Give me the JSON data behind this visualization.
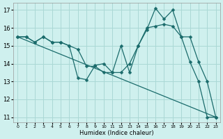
{
  "bg_color": "#cff0ee",
  "grid_color": "#aad8d5",
  "line_color": "#1a6b6b",
  "xlabel": "Humidex (Indice chaleur)",
  "xlim": [
    -0.5,
    23.5
  ],
  "ylim": [
    10.7,
    17.4
  ],
  "yticks": [
    11,
    12,
    13,
    14,
    15,
    16,
    17
  ],
  "xticks": [
    0,
    1,
    2,
    3,
    4,
    5,
    6,
    7,
    8,
    9,
    10,
    11,
    12,
    13,
    14,
    15,
    16,
    17,
    18,
    19,
    20,
    21,
    22,
    23
  ],
  "line1_x": [
    0,
    1,
    2,
    3,
    4,
    5,
    6,
    7,
    8,
    9,
    10,
    11,
    12,
    13,
    14,
    15,
    16,
    17,
    18,
    19,
    20,
    21,
    22,
    23
  ],
  "line1_y": [
    15.5,
    15.5,
    15.2,
    15.5,
    15.2,
    15.2,
    15.0,
    13.2,
    13.1,
    13.9,
    14.0,
    13.5,
    15.0,
    13.5,
    15.0,
    15.9,
    17.1,
    16.5,
    17.0,
    15.5,
    15.5,
    14.1,
    13.0,
    11.0
  ],
  "line2_x": [
    0,
    1,
    2,
    3,
    4,
    5,
    6,
    7,
    8,
    9,
    10,
    11,
    12,
    13,
    14,
    15,
    16,
    17,
    18,
    19,
    20,
    21,
    22,
    23
  ],
  "line2_y": [
    15.5,
    15.5,
    15.2,
    15.5,
    15.2,
    15.2,
    15.0,
    14.8,
    13.85,
    13.85,
    13.5,
    13.5,
    13.5,
    14.0,
    15.0,
    16.0,
    16.1,
    16.2,
    16.1,
    15.5,
    14.1,
    13.0,
    11.0,
    11.0
  ],
  "line3_x": [
    0,
    23
  ],
  "line3_y": [
    15.5,
    11.0
  ]
}
